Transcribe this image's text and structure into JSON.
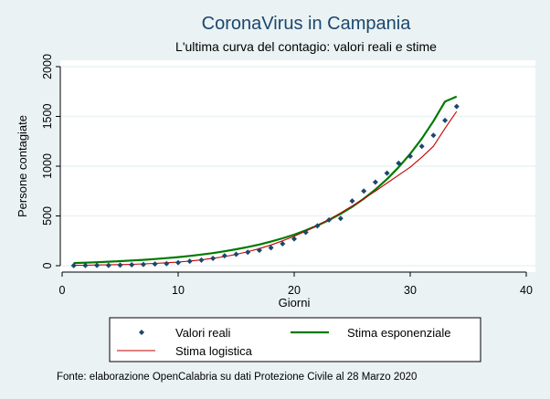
{
  "chart_data": {
    "type": "line",
    "title": "CoronaVirus in Campania",
    "subtitle": "L'ultima curva del contagio: valori reali e stime",
    "xlabel": "Giorni",
    "ylabel": "Persone contagiate",
    "xlim": [
      0,
      40
    ],
    "ylim": [
      0,
      2000
    ],
    "xticks": [
      0,
      10,
      20,
      30,
      40
    ],
    "yticks": [
      0,
      500,
      1000,
      1500,
      2000
    ],
    "grid": "horizontal",
    "legend_position": "bottom",
    "note": "Fonte: elaborazione OpenCalabria su dati Protezione Civile al 28 Marzo 2020",
    "colors": {
      "background": "#eaf2f3",
      "plot_area": "#ffffff",
      "grid": "#eaf2f3",
      "title": "#1a476f",
      "reali": "#1a476f",
      "esponenziale": "#007a00",
      "logistica": "#c40000"
    },
    "series": [
      {
        "name": "Valori reali",
        "kind": "scatter",
        "color_key": "reali",
        "x": [
          1,
          2,
          3,
          4,
          5,
          6,
          7,
          8,
          9,
          10,
          11,
          12,
          13,
          14,
          15,
          16,
          17,
          18,
          19,
          20,
          21,
          22,
          23,
          24,
          25,
          26,
          27,
          28,
          29,
          30,
          31,
          32,
          33,
          34
        ],
        "values": [
          1,
          2,
          3,
          4,
          6,
          9,
          13,
          17,
          21,
          31,
          45,
          56,
          73,
          100,
          115,
          135,
          155,
          180,
          220,
          270,
          335,
          400,
          460,
          475,
          650,
          750,
          840,
          930,
          1030,
          1100,
          1200,
          1310,
          1460,
          1600
        ]
      },
      {
        "name": "Stima esponenziale",
        "kind": "line",
        "color_key": "esponenziale",
        "x": [
          1,
          2,
          3,
          4,
          5,
          6,
          7,
          8,
          9,
          10,
          11,
          12,
          13,
          14,
          15,
          16,
          17,
          18,
          19,
          20,
          21,
          22,
          23,
          24,
          25,
          26,
          27,
          28,
          29,
          30,
          31,
          32,
          33,
          34
        ],
        "values": [
          27,
          30,
          35,
          40,
          46,
          52,
          59,
          67,
          76,
          86,
          98,
          112,
          127,
          145,
          165,
          187,
          213,
          242,
          275,
          312,
          355,
          404,
          459,
          521,
          592,
          673,
          765,
          870,
          989,
          1124,
          1277,
          1452,
          1650,
          1700
        ]
      },
      {
        "name": "Stima logistica",
        "kind": "line",
        "color_key": "logistica",
        "x": [
          1,
          2,
          3,
          4,
          5,
          6,
          7,
          8,
          9,
          10,
          11,
          12,
          13,
          14,
          15,
          16,
          17,
          18,
          19,
          20,
          21,
          22,
          23,
          24,
          25,
          26,
          27,
          28,
          29,
          30,
          31,
          32,
          33,
          34
        ],
        "values": [
          4,
          5,
          7,
          9,
          11,
          14,
          18,
          23,
          29,
          37,
          47,
          59,
          74,
          92,
          114,
          141,
          172,
          208,
          250,
          296,
          348,
          404,
          465,
          530,
          600,
          673,
          750,
          830,
          910,
          990,
          1090,
          1200,
          1380,
          1550
        ]
      }
    ]
  }
}
